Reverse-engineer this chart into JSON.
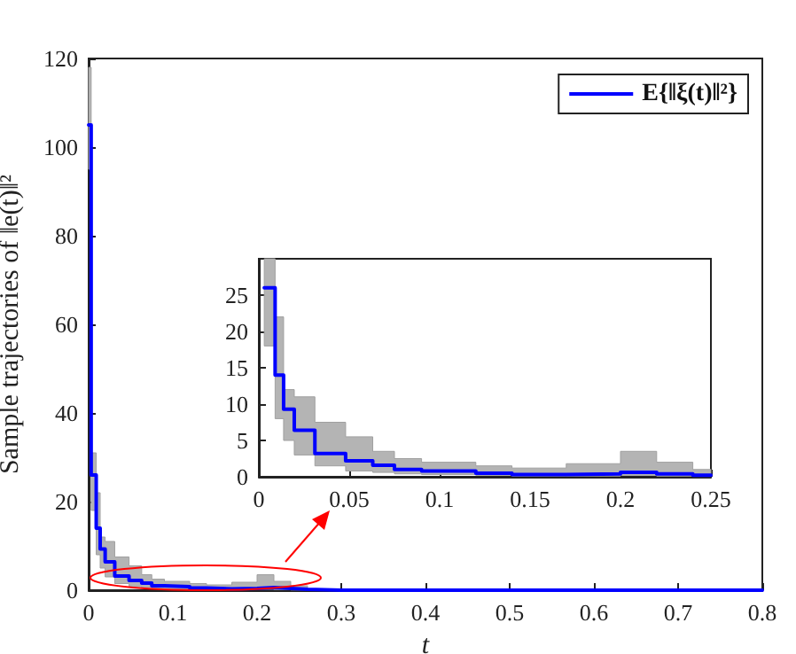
{
  "chart_data": [
    {
      "type": "step",
      "xlabel": "t",
      "ylabel": "Sample trajectories of ‖e(t)‖²",
      "xlim": [
        0,
        0.8
      ],
      "ylim": [
        0,
        120
      ],
      "xticks": [
        0,
        0.1,
        0.2,
        0.3,
        0.4,
        0.5,
        0.6,
        0.7,
        0.8
      ],
      "yticks": [
        0,
        20,
        40,
        60,
        80,
        100,
        120
      ],
      "grid": false,
      "legend": "top right",
      "marker": "none",
      "series": [
        {
          "name": "E{‖ξ(t)‖²}",
          "color": "#0000ff",
          "x": [
            0,
            0.003,
            0.009,
            0.0137,
            0.0196,
            0.031,
            0.048,
            0.063,
            0.075,
            0.09,
            0.12,
            0.14,
            0.17,
            0.2,
            0.22,
            0.24,
            0.26,
            0.3,
            0.8
          ],
          "values": [
            105,
            26,
            14,
            9.3,
            6.4,
            3.2,
            2.2,
            1.6,
            1.0,
            0.8,
            0.5,
            0.3,
            0.4,
            0.6,
            0.4,
            0.2,
            0,
            0,
            0
          ],
          "upper": [
            118,
            31,
            22,
            12,
            11,
            7.5,
            5.5,
            3.5,
            2.5,
            2,
            1.5,
            1.2,
            1.8,
            3.5,
            2,
            1,
            0.3,
            0,
            0
          ],
          "lower": [
            95,
            18,
            8,
            5,
            3,
            1.5,
            0.8,
            0.6,
            0.4,
            0.3,
            0.2,
            0.1,
            0.1,
            0.2,
            0.1,
            0.05,
            0,
            0,
            0
          ]
        }
      ]
    },
    {
      "type": "step",
      "xlim": [
        0,
        0.25
      ],
      "ylim": [
        0,
        30
      ],
      "xticks": [
        0,
        0.05,
        0.1,
        0.15,
        0.2,
        0.25
      ],
      "yticks": [
        0,
        5,
        10,
        15,
        20,
        25
      ],
      "grid": false,
      "legend": false,
      "marker": "none",
      "series": [
        {
          "color": "#0000ff",
          "x": [
            0.003,
            0.009,
            0.0137,
            0.0196,
            0.031,
            0.048,
            0.063,
            0.075,
            0.09,
            0.12,
            0.14,
            0.17,
            0.2,
            0.22,
            0.24,
            0.25
          ],
          "values": [
            26,
            14,
            9.3,
            6.4,
            3.2,
            2.2,
            1.6,
            1.0,
            0.8,
            0.5,
            0.3,
            0.4,
            0.6,
            0.4,
            0.2,
            0.1
          ],
          "upper": [
            30,
            22,
            12,
            11,
            7.5,
            5.5,
            3.5,
            2.5,
            2,
            1.5,
            1.2,
            1.8,
            3.5,
            2,
            1,
            0.5
          ],
          "lower": [
            18,
            8,
            5,
            3,
            1.5,
            0.8,
            0.6,
            0.4,
            0.3,
            0.2,
            0.1,
            0.1,
            0.2,
            0.1,
            0.05,
            0
          ]
        }
      ]
    }
  ]
}
